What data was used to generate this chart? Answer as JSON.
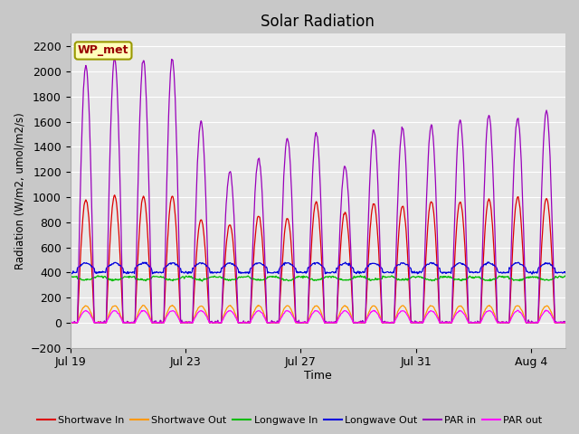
{
  "title": "Solar Radiation",
  "ylabel": "Radiation (W/m2, umol/m2/s)",
  "xlabel": "Time",
  "ylim": [
    -200,
    2300
  ],
  "yticks": [
    -200,
    0,
    200,
    400,
    600,
    800,
    1000,
    1200,
    1400,
    1600,
    1800,
    2000,
    2200
  ],
  "xtick_labels": [
    "Jul 19",
    "Jul 23",
    "Jul 27",
    "Jul 31",
    "Aug 4"
  ],
  "legend_label": "WP_met",
  "fig_bg_color": "#c8c8c8",
  "plot_bg_color": "#e8e8e8",
  "line_colors": {
    "sw_in": "#dd0000",
    "sw_out": "#ff9900",
    "lw_in": "#00bb00",
    "lw_out": "#0000dd",
    "par_in": "#9900bb",
    "par_out": "#ff00ff"
  },
  "legend_entries": [
    "Shortwave In",
    "Shortwave Out",
    "Longwave In",
    "Longwave Out",
    "PAR in",
    "PAR out"
  ],
  "n_days": 18,
  "dt_hours": 0.5
}
